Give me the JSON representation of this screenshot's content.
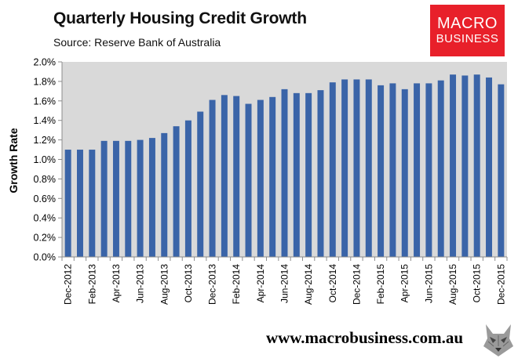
{
  "header": {
    "title": "Quarterly Housing Credit Growth",
    "subtitle": "Source: Reserve Bank of Australia"
  },
  "logo": {
    "line1": "MACRO",
    "line2": "BUSINESS",
    "bg_color": "#e8202a"
  },
  "footer": {
    "url": "www.macrobusiness.com.au",
    "icon": "wolf-logo-icon"
  },
  "chart_data": {
    "type": "bar",
    "title": "Quarterly Housing Credit Growth",
    "xlabel": "",
    "ylabel": "Growth Rate",
    "ylim": [
      0,
      2.0
    ],
    "y_ticks": [
      "0.0%",
      "0.2%",
      "0.4%",
      "0.6%",
      "0.8%",
      "1.0%",
      "1.2%",
      "1.4%",
      "1.6%",
      "1.8%",
      "2.0%"
    ],
    "bar_color": "#3a64a8",
    "categories": [
      "Dec-2012",
      "Jan-2013",
      "Feb-2013",
      "Mar-2013",
      "Apr-2013",
      "May-2013",
      "Jun-2013",
      "Jul-2013",
      "Aug-2013",
      "Sep-2013",
      "Oct-2013",
      "Nov-2013",
      "Dec-2013",
      "Jan-2014",
      "Feb-2014",
      "Mar-2014",
      "Apr-2014",
      "May-2014",
      "Jun-2014",
      "Jul-2014",
      "Aug-2014",
      "Sep-2014",
      "Oct-2014",
      "Nov-2014",
      "Dec-2014",
      "Jan-2015",
      "Feb-2015",
      "Mar-2015",
      "Apr-2015",
      "May-2015",
      "Jun-2015",
      "Jul-2015",
      "Aug-2015",
      "Sep-2015",
      "Oct-2015",
      "Nov-2015",
      "Dec-2015"
    ],
    "x_tick_labels": [
      "Dec-2012",
      "",
      "Feb-2013",
      "",
      "Apr-2013",
      "",
      "Jun-2013",
      "",
      "Aug-2013",
      "",
      "Oct-2013",
      "",
      "Dec-2013",
      "",
      "Feb-2014",
      "",
      "Apr-2014",
      "",
      "Jun-2014",
      "",
      "Aug-2014",
      "",
      "Oct-2014",
      "",
      "Dec-2014",
      "",
      "Feb-2015",
      "",
      "Apr-2015",
      "",
      "Jun-2015",
      "",
      "Aug-2015",
      "",
      "Oct-2015",
      "",
      "Dec-2015"
    ],
    "values": [
      1.1,
      1.1,
      1.1,
      1.19,
      1.19,
      1.19,
      1.2,
      1.22,
      1.27,
      1.34,
      1.4,
      1.49,
      1.61,
      1.66,
      1.65,
      1.57,
      1.61,
      1.64,
      1.72,
      1.68,
      1.68,
      1.71,
      1.79,
      1.82,
      1.82,
      1.82,
      1.76,
      1.78,
      1.72,
      1.78,
      1.78,
      1.81,
      1.87,
      1.86,
      1.87,
      1.84,
      1.77
    ],
    "grid": false,
    "legend": "none"
  }
}
